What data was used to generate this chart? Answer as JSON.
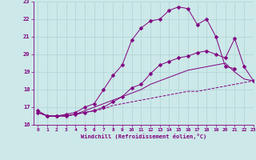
{
  "xlabel": "Windchill (Refroidissement éolien,°C)",
  "ylabel": "",
  "background_color": "#cce8e8",
  "line_color": "#800080",
  "xlim": [
    -0.5,
    23
  ],
  "ylim": [
    16,
    23
  ],
  "xticks": [
    0,
    1,
    2,
    3,
    4,
    5,
    6,
    7,
    8,
    9,
    10,
    11,
    12,
    13,
    14,
    15,
    16,
    17,
    18,
    19,
    20,
    21,
    22,
    23
  ],
  "yticks": [
    16,
    17,
    18,
    19,
    20,
    21,
    22,
    23
  ],
  "grid_color": "#aed4d4",
  "series": [
    {
      "x": [
        0,
        1,
        2,
        3,
        4,
        5,
        6,
        7,
        8,
        9,
        10,
        11,
        12,
        13,
        14,
        15,
        16,
        17,
        18,
        19,
        20,
        21
      ],
      "y": [
        16.8,
        16.5,
        16.5,
        16.6,
        16.7,
        17.0,
        17.2,
        18.0,
        18.8,
        19.4,
        20.8,
        21.5,
        21.9,
        22.0,
        22.5,
        22.7,
        22.6,
        21.7,
        22.0,
        21.0,
        19.3,
        19.2
      ],
      "marker": "D",
      "markersize": 2.5,
      "linestyle": "-"
    },
    {
      "x": [
        0,
        1,
        2,
        3,
        4,
        5,
        6,
        7,
        8,
        9,
        10,
        11,
        12,
        13,
        14,
        15,
        16,
        17,
        18,
        19,
        20,
        21,
        22,
        23
      ],
      "y": [
        16.7,
        16.5,
        16.5,
        16.5,
        16.6,
        16.7,
        16.8,
        17.0,
        17.3,
        17.6,
        18.1,
        18.3,
        18.9,
        19.4,
        19.6,
        19.8,
        19.9,
        20.1,
        20.2,
        20.0,
        19.8,
        20.9,
        19.3,
        18.5
      ],
      "marker": "D",
      "markersize": 2.5,
      "linestyle": "-"
    },
    {
      "x": [
        0,
        1,
        2,
        3,
        4,
        5,
        6,
        7,
        8,
        9,
        10,
        11,
        12,
        13,
        14,
        15,
        16,
        17,
        18,
        19,
        20,
        21,
        22,
        23
      ],
      "y": [
        16.7,
        16.5,
        16.5,
        16.5,
        16.6,
        16.7,
        16.8,
        16.9,
        17.1,
        17.2,
        17.3,
        17.4,
        17.5,
        17.6,
        17.7,
        17.8,
        17.9,
        17.9,
        18.0,
        18.1,
        18.2,
        18.3,
        18.4,
        18.5
      ],
      "marker": null,
      "markersize": 0,
      "linestyle": "--"
    },
    {
      "x": [
        0,
        1,
        2,
        3,
        4,
        5,
        6,
        7,
        8,
        9,
        10,
        11,
        12,
        13,
        14,
        15,
        16,
        17,
        18,
        19,
        20,
        21,
        22,
        23
      ],
      "y": [
        16.7,
        16.5,
        16.5,
        16.5,
        16.6,
        16.8,
        17.0,
        17.2,
        17.4,
        17.6,
        17.8,
        18.0,
        18.3,
        18.5,
        18.7,
        18.9,
        19.1,
        19.2,
        19.3,
        19.4,
        19.5,
        19.0,
        18.6,
        18.5
      ],
      "marker": null,
      "markersize": 0,
      "linestyle": "-"
    }
  ]
}
